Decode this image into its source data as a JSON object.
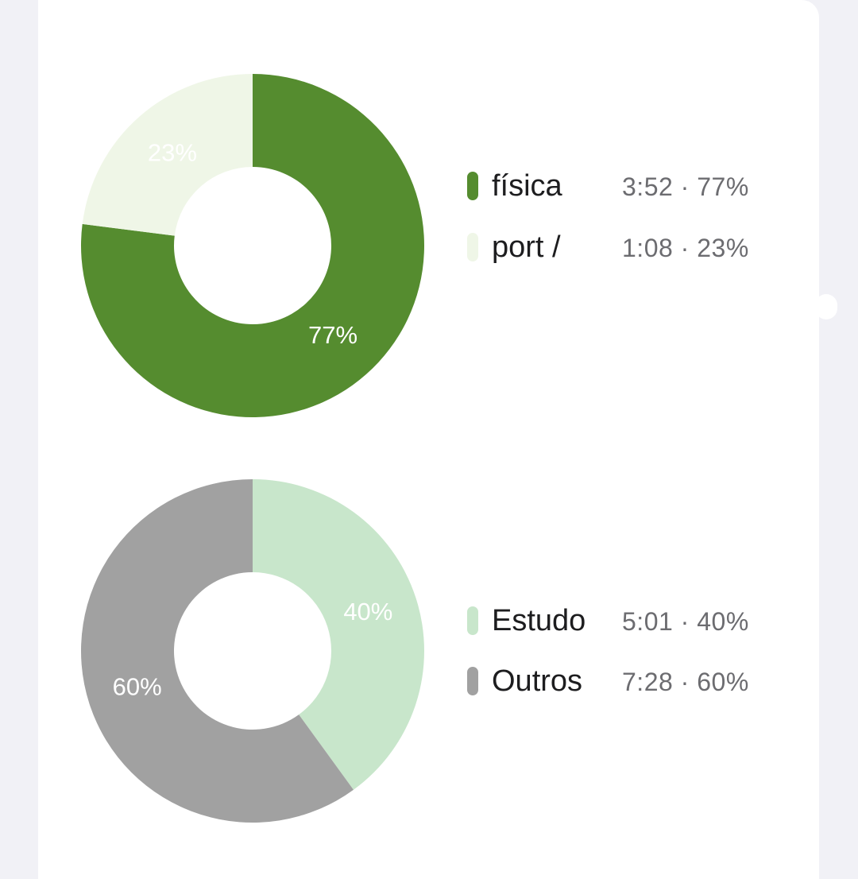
{
  "chart_data": [
    {
      "type": "pie",
      "categories": [
        "física",
        "port /"
      ],
      "values": [
        77,
        23
      ],
      "durations": [
        "3:52",
        "1:08"
      ],
      "slice_labels": [
        "77%",
        "23%"
      ],
      "legend_stats": [
        "3:52 · 77%",
        "1:08 · 23%"
      ],
      "colors": [
        "#558c2f",
        "#eff6e7"
      ],
      "legend_position": "right"
    },
    {
      "type": "pie",
      "categories": [
        "Estudo",
        "Outros"
      ],
      "values": [
        40,
        60
      ],
      "durations": [
        "5:01",
        "7:28"
      ],
      "slice_labels": [
        "40%",
        "60%"
      ],
      "legend_stats": [
        "5:01 · 40%",
        "7:28 · 60%"
      ],
      "colors": [
        "#c8e6cb",
        "#a1a1a1"
      ],
      "legend_position": "right"
    }
  ]
}
